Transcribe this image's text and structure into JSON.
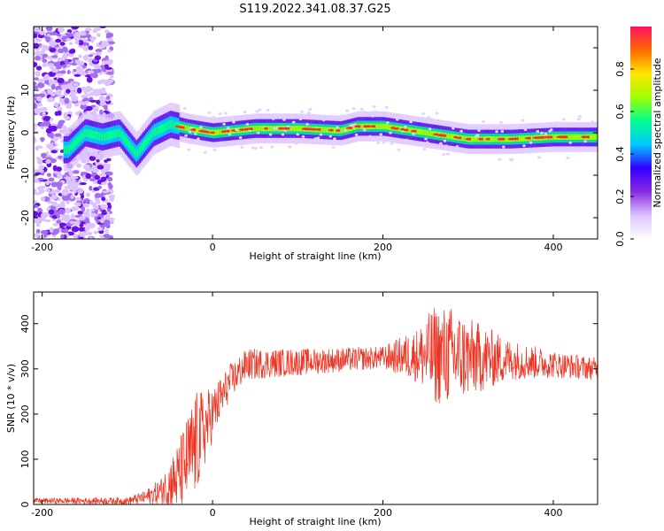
{
  "title": "S119.2022.341.08.37.G25",
  "chart_data": [
    {
      "type": "heatmap",
      "xlabel": "Height of straight line (km)",
      "ylabel": "Frequency (Hz)",
      "xlim": [
        -210,
        452
      ],
      "ylim": [
        -25,
        25
      ],
      "xticks": [
        -200,
        0,
        200,
        400
      ],
      "yticks": [
        -20,
        -10,
        0,
        10,
        20
      ],
      "colorbar": {
        "label": "Normalized spectral amplitude",
        "range": [
          0,
          1
        ],
        "ticks": [
          0.0,
          0.2,
          0.4,
          0.6,
          0.8
        ],
        "colormap": [
          "#ffffff",
          "#dcc3ff",
          "#8a2be2",
          "#3300ff",
          "#00c8ff",
          "#00ff90",
          "#a0ff00",
          "#ffe600",
          "#ff6a00",
          "#ff1060"
        ]
      },
      "ridge": {
        "x": [
          -170,
          -150,
          -130,
          -110,
          -90,
          -70,
          -50,
          -30,
          0,
          50,
          100,
          150,
          170,
          200,
          250,
          300,
          350,
          400,
          452
        ],
        "freq": [
          -4,
          0,
          -1,
          0,
          -5,
          0,
          2,
          1,
          0,
          1,
          1,
          0.5,
          1.5,
          1.5,
          0,
          -1.5,
          -1.5,
          -1,
          -1
        ]
      },
      "noise_region_x": [
        -210,
        -118
      ]
    },
    {
      "type": "line",
      "xlabel": "Height of straight line (km)",
      "ylabel": "SNR (10 * v/v)",
      "xlim": [
        -210,
        452
      ],
      "ylim": [
        0,
        470
      ],
      "xticks": [
        -200,
        0,
        200,
        400
      ],
      "yticks": [
        0,
        100,
        200,
        300,
        400
      ],
      "series_color": "#ee3322",
      "envelope": {
        "x": [
          -210,
          -100,
          -80,
          -60,
          -40,
          -20,
          0,
          20,
          40,
          100,
          200,
          240,
          260,
          280,
          300,
          350,
          400,
          452
        ],
        "mean": [
          8,
          8,
          15,
          30,
          60,
          130,
          200,
          270,
          310,
          315,
          325,
          330,
          330,
          330,
          325,
          320,
          310,
          300
        ],
        "amp": [
          6,
          8,
          15,
          30,
          80,
          120,
          60,
          40,
          35,
          30,
          25,
          60,
          110,
          110,
          90,
          45,
          30,
          25
        ]
      }
    }
  ]
}
